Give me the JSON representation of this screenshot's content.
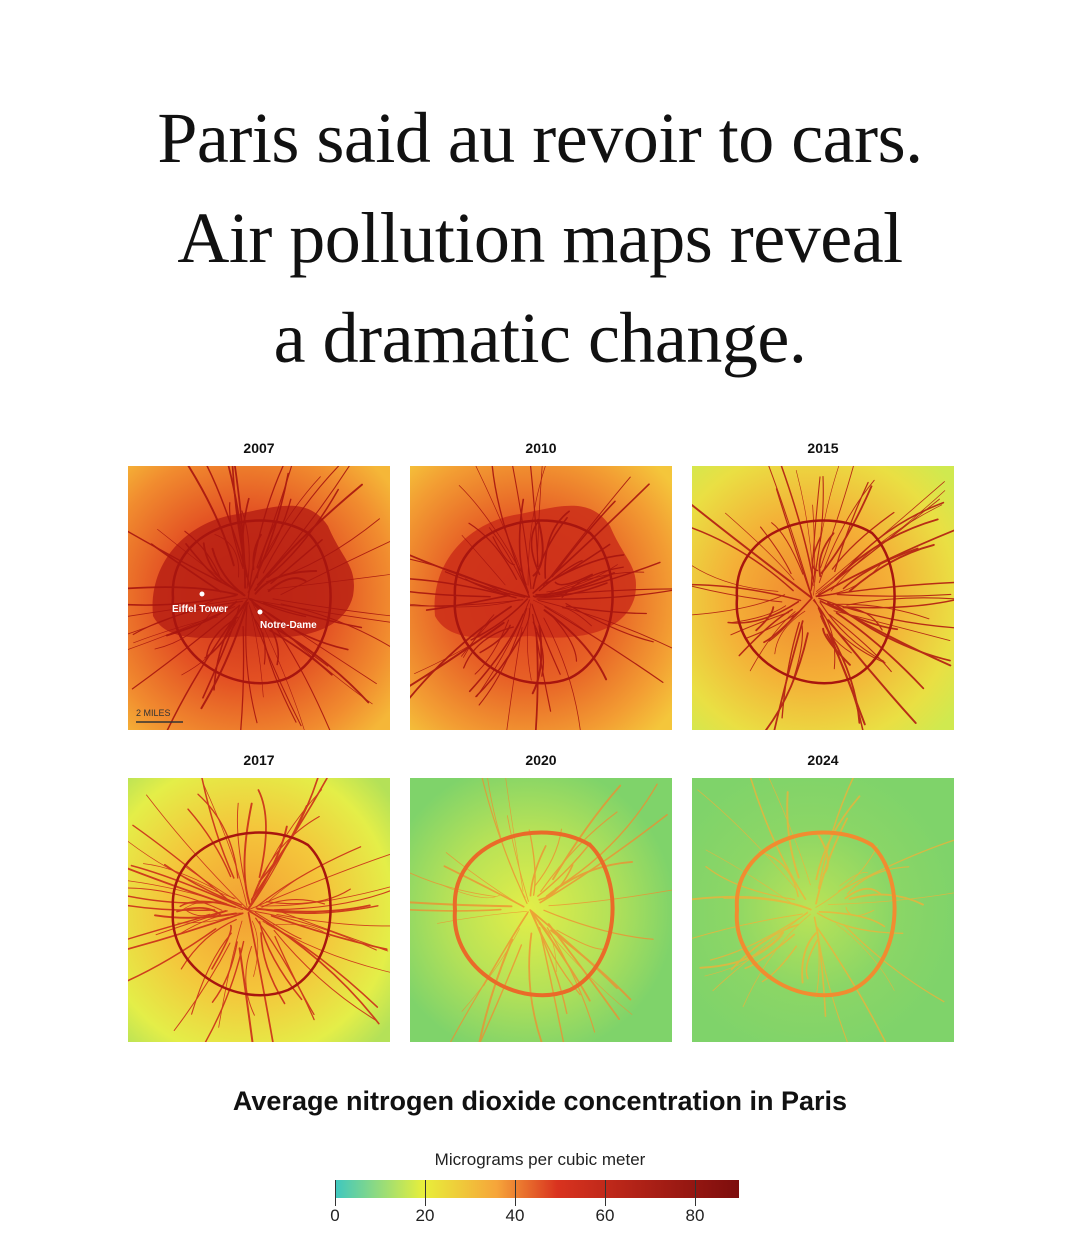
{
  "headline": {
    "line1": "Paris said au revoir to cars.",
    "line2": "Air pollution maps reveal",
    "line3": "a dramatic change."
  },
  "maps": [
    {
      "year": "2007",
      "pollution": 0.9,
      "labels": [
        "Eiffel Tower",
        "Notre-Dame"
      ],
      "scale": "2 MILES"
    },
    {
      "year": "2010",
      "pollution": 0.85
    },
    {
      "year": "2015",
      "pollution": 0.62
    },
    {
      "year": "2017",
      "pollution": 0.55
    },
    {
      "year": "2020",
      "pollution": 0.25
    },
    {
      "year": "2024",
      "pollution": 0.15
    }
  ],
  "subtitle": "Average nitrogen dioxide concentration in Paris",
  "legend": {
    "unit": "Micrograms per cubic meter",
    "ticks": [
      "0",
      "20",
      "40",
      "60",
      "80"
    ],
    "colors": [
      "#3ec7c0",
      "#e8ef3a",
      "#f6a53a",
      "#d9331f",
      "#7d0d0d"
    ]
  }
}
